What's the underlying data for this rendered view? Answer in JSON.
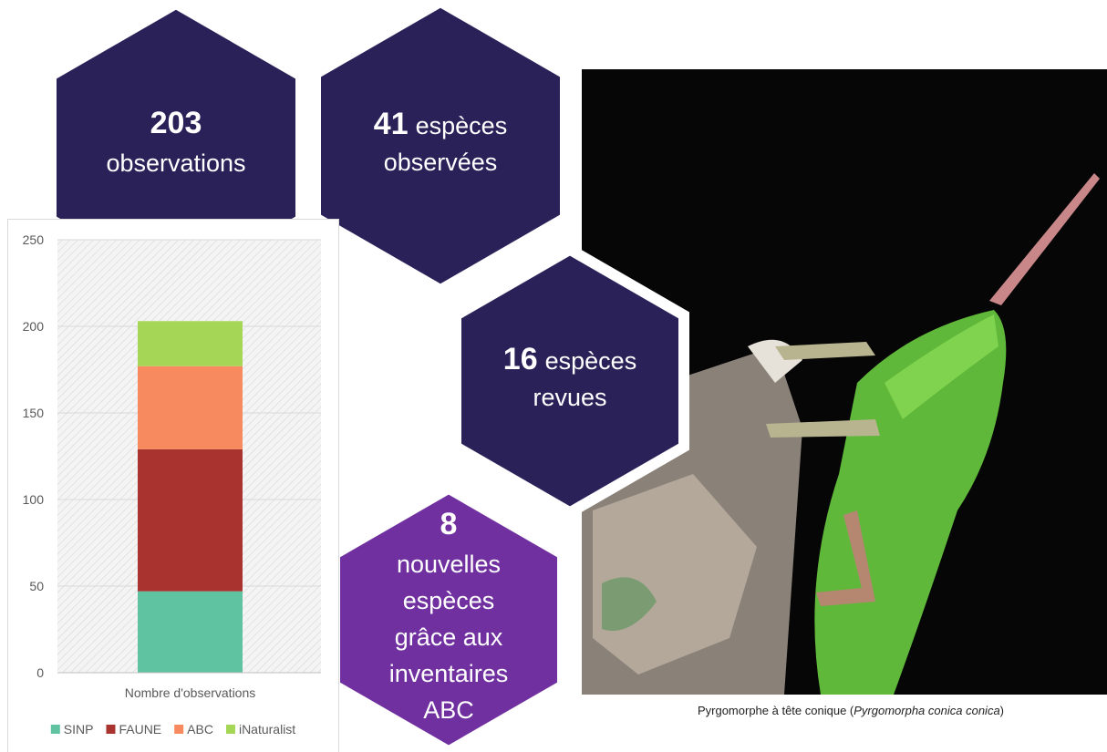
{
  "hexagons": [
    {
      "lines": [
        {
          "bold": "203"
        },
        {
          "text": "observations"
        }
      ]
    },
    {
      "lines": [
        {
          "bold": "41",
          "text": "espèces"
        },
        {
          "text": "observées"
        }
      ]
    },
    {
      "lines": [
        {
          "bold": "16",
          "text": "espèces"
        },
        {
          "text": "revues"
        }
      ]
    },
    {
      "lines": [
        {
          "bold": "8"
        },
        {
          "text": "nouvelles"
        },
        {
          "text": "espèces"
        },
        {
          "text": "grâce aux"
        },
        {
          "text": "inventaires"
        },
        {
          "text": "ABC"
        }
      ]
    }
  ],
  "caption": {
    "prefix": "Pyrgomorphe à tête conique (",
    "italic": "Pyrgomorpha conica conica",
    "suffix": ")"
  },
  "chart_data": {
    "type": "stacked_bar",
    "categories": [
      "Nombre d'observations"
    ],
    "series": [
      {
        "name": "SINP",
        "color": "#5fc2a0",
        "values": [
          47
        ]
      },
      {
        "name": "FAUNE",
        "color": "#a9342f",
        "values": [
          82
        ]
      },
      {
        "name": "ABC",
        "color": "#f78b5f",
        "values": [
          48
        ]
      },
      {
        "name": "iNaturalist",
        "color": "#a6d655",
        "values": [
          26
        ]
      }
    ],
    "ylim": [
      0,
      250
    ],
    "yticks": [
      0,
      50,
      100,
      150,
      200,
      250
    ],
    "grid": true,
    "legend": "bottom"
  }
}
